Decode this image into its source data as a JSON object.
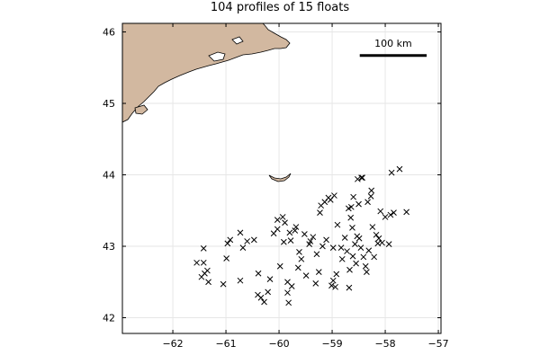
{
  "colors": {
    "land": "#d2b8a0",
    "coastline": "#000000",
    "marker": "#000000",
    "grid": "#e6e6e6",
    "background": "#ffffff"
  },
  "chart_data": {
    "type": "scatter",
    "title": "104 profiles of 15 floats",
    "xlabel": "",
    "ylabel": "",
    "xlim": [
      -62.95,
      -56.95
    ],
    "ylim": [
      41.78,
      46.12
    ],
    "xticks": [
      -62,
      -61,
      -60,
      -59,
      -58,
      -57
    ],
    "xtick_labels": [
      "−62",
      "−61",
      "−60",
      "−59",
      "−58",
      "−57"
    ],
    "yticks": [
      42,
      43,
      44,
      45,
      46
    ],
    "ytick_labels": [
      "42",
      "43",
      "44",
      "45",
      "46"
    ],
    "grid": true,
    "marker": "x",
    "scale_bar": {
      "label": "100 km",
      "lon_start": -58.48,
      "lon_end": -57.22,
      "lat": 45.67
    },
    "coastline_features": [
      "Nova Scotia",
      "Sable Island"
    ],
    "series": [
      {
        "points": [
          [
            -61.55,
            42.77
          ],
          [
            -61.42,
            42.97
          ],
          [
            -61.42,
            42.77
          ],
          [
            -61.4,
            42.62
          ],
          [
            -61.46,
            42.57
          ],
          [
            -61.35,
            42.66
          ],
          [
            -61.33,
            42.5
          ],
          [
            -61.05,
            42.47
          ],
          [
            -60.99,
            42.83
          ],
          [
            -60.97,
            43.04
          ],
          [
            -60.92,
            43.09
          ],
          [
            -60.73,
            42.52
          ],
          [
            -60.73,
            43.19
          ],
          [
            -60.68,
            42.98
          ],
          [
            -60.6,
            43.07
          ],
          [
            -60.47,
            43.09
          ],
          [
            -60.39,
            42.62
          ],
          [
            -60.4,
            42.32
          ],
          [
            -60.34,
            42.28
          ],
          [
            -60.28,
            42.22
          ],
          [
            -60.21,
            42.36
          ],
          [
            -60.17,
            42.54
          ],
          [
            -60.1,
            43.18
          ],
          [
            -60.03,
            43.24
          ],
          [
            -60.03,
            43.37
          ],
          [
            -59.98,
            42.72
          ],
          [
            -59.93,
            43.41
          ],
          [
            -59.91,
            43.06
          ],
          [
            -59.89,
            43.33
          ],
          [
            -59.84,
            42.5
          ],
          [
            -59.84,
            42.35
          ],
          [
            -59.82,
            42.21
          ],
          [
            -59.8,
            43.19
          ],
          [
            -59.78,
            43.08
          ],
          [
            -59.76,
            42.44
          ],
          [
            -59.7,
            43.22
          ],
          [
            -59.68,
            43.27
          ],
          [
            -59.64,
            42.7
          ],
          [
            -59.62,
            42.92
          ],
          [
            -59.58,
            42.82
          ],
          [
            -59.52,
            43.17
          ],
          [
            -59.49,
            42.59
          ],
          [
            -59.43,
            43.03
          ],
          [
            -59.41,
            43.07
          ],
          [
            -59.36,
            43.13
          ],
          [
            -59.31,
            42.48
          ],
          [
            -59.29,
            42.89
          ],
          [
            -59.25,
            42.64
          ],
          [
            -59.23,
            43.47
          ],
          [
            -59.21,
            43.57
          ],
          [
            -59.18,
            43.0
          ],
          [
            -59.14,
            43.62
          ],
          [
            -59.11,
            43.09
          ],
          [
            -59.07,
            43.68
          ],
          [
            -59.03,
            43.65
          ],
          [
            -59.01,
            42.45
          ],
          [
            -58.98,
            42.52
          ],
          [
            -58.98,
            42.98
          ],
          [
            -58.96,
            43.71
          ],
          [
            -58.94,
            42.43
          ],
          [
            -58.92,
            42.61
          ],
          [
            -58.9,
            43.3
          ],
          [
            -58.83,
            42.98
          ],
          [
            -58.81,
            42.82
          ],
          [
            -58.76,
            43.12
          ],
          [
            -58.72,
            42.93
          ],
          [
            -58.69,
            43.53
          ],
          [
            -58.68,
            42.42
          ],
          [
            -58.67,
            42.67
          ],
          [
            -58.65,
            43.4
          ],
          [
            -58.64,
            43.55
          ],
          [
            -58.62,
            43.26
          ],
          [
            -58.61,
            42.86
          ],
          [
            -58.6,
            43.69
          ],
          [
            -58.57,
            43.03
          ],
          [
            -58.55,
            42.76
          ],
          [
            -58.53,
            43.14
          ],
          [
            -58.52,
            43.94
          ],
          [
            -58.5,
            43.59
          ],
          [
            -58.49,
            43.11
          ],
          [
            -58.46,
            42.98
          ],
          [
            -58.45,
            43.96
          ],
          [
            -58.43,
            43.96
          ],
          [
            -58.41,
            42.85
          ],
          [
            -58.37,
            42.72
          ],
          [
            -58.35,
            42.64
          ],
          [
            -58.33,
            43.62
          ],
          [
            -58.31,
            42.94
          ],
          [
            -58.27,
            43.7
          ],
          [
            -58.26,
            43.78
          ],
          [
            -58.24,
            43.27
          ],
          [
            -58.21,
            42.85
          ],
          [
            -58.17,
            43.16
          ],
          [
            -58.14,
            43.04
          ],
          [
            -58.12,
            43.11
          ],
          [
            -58.09,
            43.49
          ],
          [
            -58.06,
            43.05
          ],
          [
            -58.0,
            43.41
          ],
          [
            -57.93,
            43.03
          ],
          [
            -57.9,
            43.44
          ],
          [
            -57.88,
            44.03
          ],
          [
            -57.84,
            43.47
          ],
          [
            -57.73,
            44.08
          ],
          [
            -57.6,
            43.48
          ]
        ]
      }
    ]
  }
}
